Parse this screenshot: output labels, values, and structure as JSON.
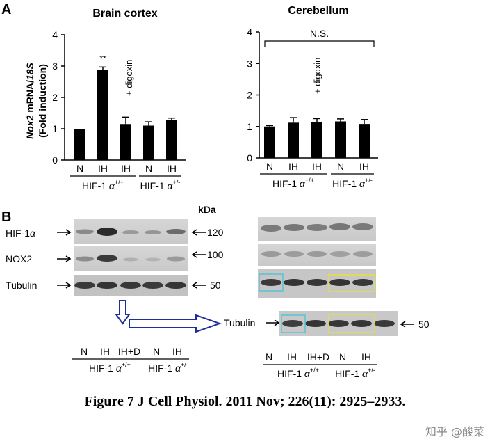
{
  "panel_a_label": "A",
  "panel_b_label": "B",
  "caption": "Figure 7 J Cell Physiol. 2011 Nov; 226(11): 2925–2933.",
  "watermark": "知乎 @酸菜",
  "colors": {
    "bar": "#000000",
    "box_cyan": "#56c4d6",
    "box_yellow": "#e7e13a",
    "arrow": "#1f2f9a"
  },
  "chart_data": [
    {
      "type": "bar",
      "title": "Brain cortex",
      "ylabel_italic": "Nox2",
      "ylabel_rest": " mRNA/",
      "ylabel_italic2": "18S",
      "ylabel2": "(Fold induction)",
      "ylim": [
        0,
        4
      ],
      "yticks": [
        "0",
        "1",
        "2",
        "3",
        "4"
      ],
      "categories": [
        "N",
        "IH",
        "IH",
        "N",
        "IH"
      ],
      "values": [
        1.0,
        2.87,
        1.15,
        1.1,
        1.28
      ],
      "errors": [
        0.0,
        0.1,
        0.22,
        0.12,
        0.06
      ],
      "groups": [
        {
          "label": "HIF-1",
          "sup": "+/+",
          "span": [
            0,
            2
          ]
        },
        {
          "label": "HIF-1",
          "sup": "+/-",
          "span": [
            3,
            4
          ]
        }
      ],
      "annotations": {
        "sig": "**",
        "treatment": "+ digoxin"
      }
    },
    {
      "type": "bar",
      "title": "Cerebellum",
      "ylim": [
        0,
        4
      ],
      "yticks": [
        "0",
        "1",
        "2",
        "3",
        "4"
      ],
      "categories": [
        "N",
        "IH",
        "IH",
        "N",
        "IH"
      ],
      "values": [
        1.0,
        1.12,
        1.15,
        1.16,
        1.08
      ],
      "errors": [
        0.03,
        0.16,
        0.1,
        0.08,
        0.14
      ],
      "groups": [
        {
          "label": "HIF-1",
          "sup": "+/+",
          "span": [
            0,
            2
          ]
        },
        {
          "label": "HIF-1",
          "sup": "+/-",
          "span": [
            3,
            4
          ]
        }
      ],
      "annotations": {
        "ns": "N.S.",
        "treatment": "+ digoxin"
      }
    }
  ],
  "blot": {
    "kda_label": "kDa",
    "rows": [
      {
        "label": "HIF-1",
        "kda": "120"
      },
      {
        "label": "NOX2",
        "kda": "100"
      },
      {
        "label": "Tubulin",
        "kda": "50"
      }
    ],
    "extra_tubulin_label": "Tubulin",
    "extra_tubulin_kda": "50",
    "lanes_left": [
      "N",
      "IH",
      "IH+D",
      "N",
      "IH"
    ],
    "lanes_right": [
      "N",
      "IH",
      "IH+D",
      "N",
      "IH"
    ],
    "group1": "HIF-1",
    "group1_sup": "+/+",
    "group2": "HIF-1",
    "group2_sup": "+/-"
  }
}
